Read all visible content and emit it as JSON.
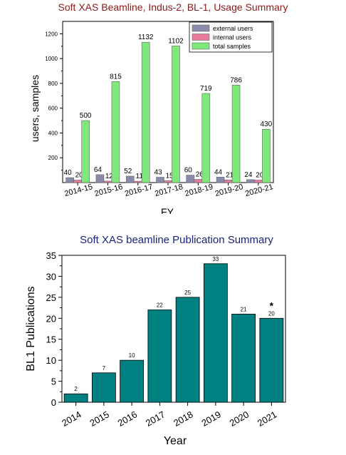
{
  "chart_data": [
    {
      "type": "bar",
      "title": "Soft XAS Beamline, Indus-2, BL-1, Usage Summary",
      "xlabel": "FY",
      "ylabel": "users, samples",
      "ylim": [
        0,
        1300
      ],
      "yticks": [
        200,
        400,
        600,
        800,
        1000,
        1200
      ],
      "categories": [
        "2014-15",
        "2015-16",
        "2016-17",
        "2017-18",
        "2018-19",
        "2019-20",
        "2020-21"
      ],
      "legend_position": "top-right",
      "grid": false,
      "series": [
        {
          "name": "external users",
          "color": "#8a8aaa",
          "values": [
            40,
            64,
            52,
            43,
            60,
            44,
            24
          ]
        },
        {
          "name": "internal users",
          "color": "#e87a9a",
          "values": [
            20,
            12,
            11,
            15,
            26,
            21,
            20
          ]
        },
        {
          "name": "total samples",
          "color": "#7ee87a",
          "values": [
            500,
            815,
            1132,
            1102,
            719,
            786,
            430
          ]
        }
      ],
      "title_color": "#8b1a1a"
    },
    {
      "type": "bar",
      "title": "Soft XAS beamline Publication Summary",
      "xlabel": "Year",
      "ylabel": "BL1 Publications",
      "ylim": [
        0,
        35
      ],
      "yticks": [
        0,
        5,
        10,
        15,
        20,
        25,
        30,
        35
      ],
      "categories": [
        "2014",
        "2015",
        "2016",
        "2017",
        "2018",
        "2019",
        "2020",
        "2021"
      ],
      "values": [
        2,
        7,
        10,
        22,
        25,
        33,
        21,
        20
      ],
      "bar_color": "#008080",
      "title_color": "#1a237e",
      "grid": false,
      "annotations": [
        {
          "category": "2021",
          "text": "*"
        }
      ]
    }
  ]
}
